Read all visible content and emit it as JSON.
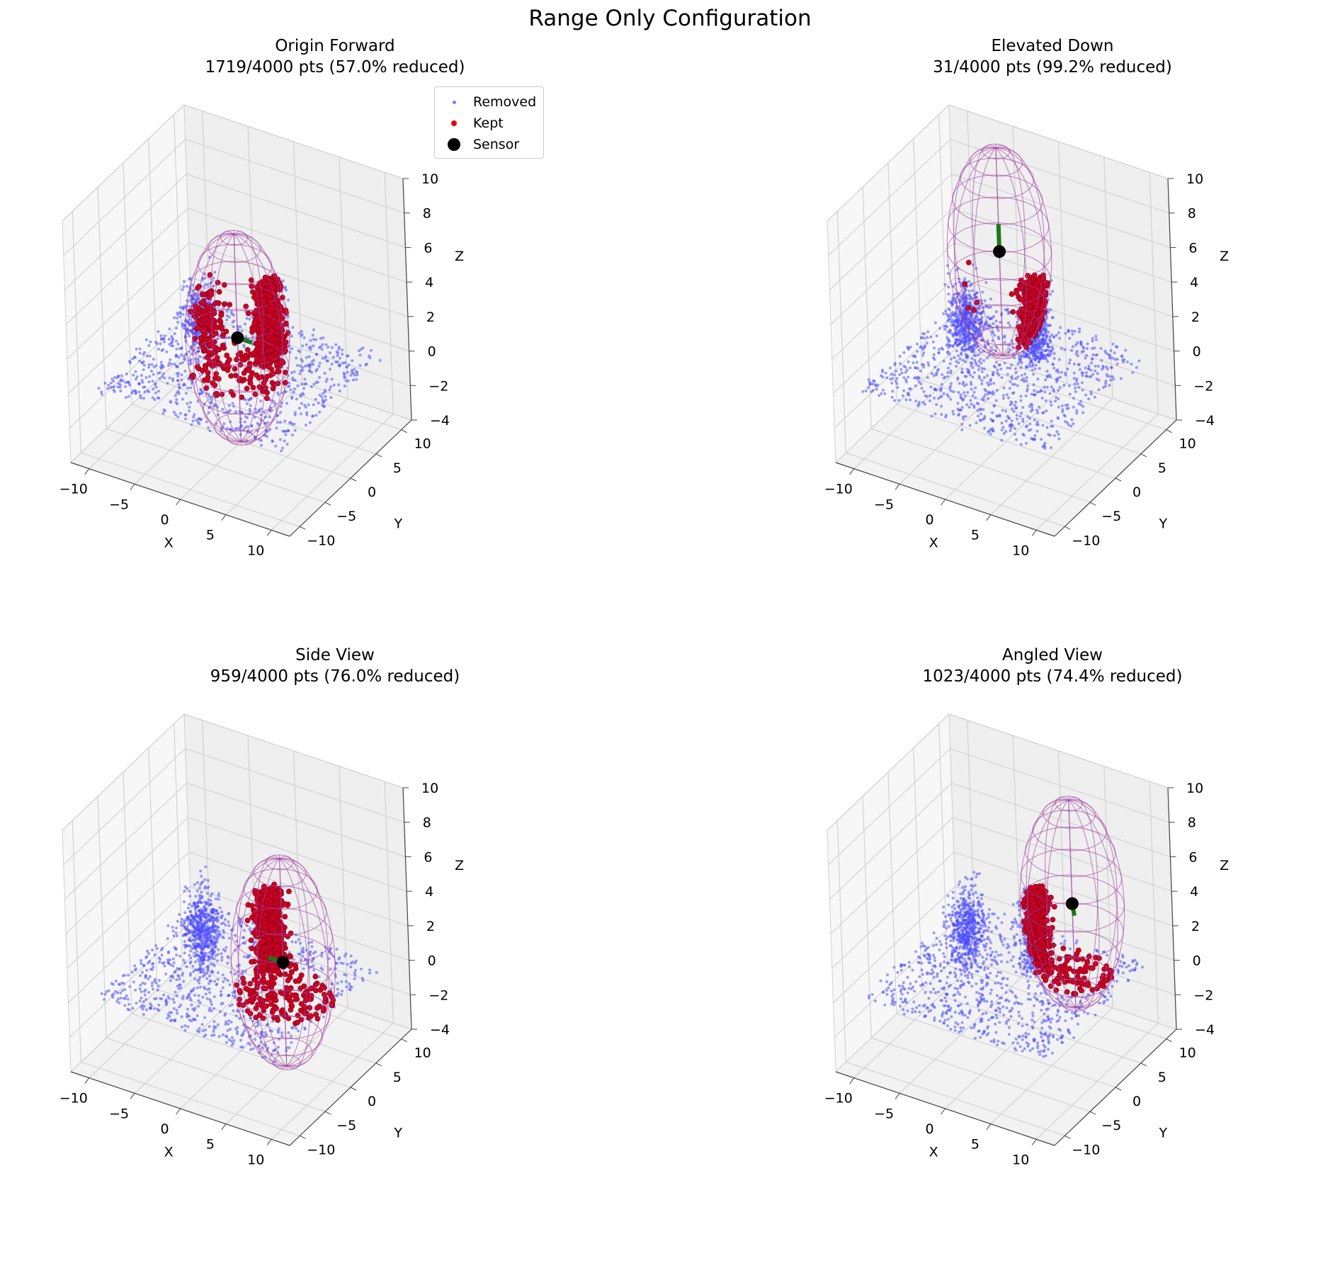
{
  "figure_title": "Range Only Configuration",
  "legend": {
    "entries": [
      {
        "label": "Removed",
        "color": "#4d4dff"
      },
      {
        "label": "Kept",
        "color": "#ee0000"
      },
      {
        "label": "Sensor",
        "color": "#000000"
      }
    ]
  },
  "axes_common": {
    "xlabel": "X",
    "ylabel": "Y",
    "zlabel": "Z",
    "xticks": [
      "−10",
      "−5",
      "0",
      "5",
      "10"
    ],
    "yticks": [
      "−10",
      "−5",
      "0",
      "5",
      "10"
    ],
    "zticks": [
      "−4",
      "−2",
      "0",
      "2",
      "4",
      "6",
      "8",
      "10"
    ],
    "xlim": [
      -12,
      12
    ],
    "ylim": [
      -12,
      12
    ],
    "zlim": [
      -4,
      10
    ]
  },
  "panels": [
    {
      "title": "Origin Forward",
      "subtitle": "1719/4000 pts (57.0% reduced)"
    },
    {
      "title": "Elevated Down",
      "subtitle": "31/4000 pts (99.2% reduced)"
    },
    {
      "title": "Side View",
      "subtitle": "959/4000 pts (76.0% reduced)"
    },
    {
      "title": "Angled View",
      "subtitle": "1023/4000 pts (74.4% reduced)"
    }
  ],
  "chart_data": [
    {
      "type": "scatter",
      "title": "Origin Forward",
      "subtitle": "1719/4000 pts (57.0% reduced)",
      "total_points": 4000,
      "kept_points": 1719,
      "reduction_pct": 57.0,
      "sensor": {
        "x": 0,
        "y": 0,
        "z": 0
      },
      "direction": [
        1,
        0,
        0
      ],
      "range_ellipsoid": {
        "center": [
          0,
          0,
          0
        ],
        "radii": [
          5,
          5,
          6
        ]
      }
    },
    {
      "type": "scatter",
      "title": "Elevated Down",
      "subtitle": "31/4000 pts (99.2% reduced)",
      "total_points": 4000,
      "kept_points": 31,
      "reduction_pct": 99.2,
      "sensor": {
        "x": 0,
        "y": 0,
        "z": 5
      },
      "direction": [
        0,
        0,
        1
      ],
      "range_ellipsoid": {
        "center": [
          0,
          0,
          5
        ],
        "radii": [
          5,
          5,
          6
        ]
      }
    },
    {
      "type": "scatter",
      "title": "Side View",
      "subtitle": "959/4000 pts (76.0% reduced)",
      "total_points": 4000,
      "kept_points": 959,
      "reduction_pct": 76.0,
      "sensor": {
        "x": 5,
        "y": 0,
        "z": 0
      },
      "direction": [
        -1,
        0,
        0
      ],
      "range_ellipsoid": {
        "center": [
          5,
          0,
          0
        ],
        "radii": [
          5,
          5,
          6
        ]
      }
    },
    {
      "type": "scatter",
      "title": "Angled View",
      "subtitle": "1023/4000 pts (74.4% reduced)",
      "total_points": 4000,
      "kept_points": 1023,
      "reduction_pct": 74.4,
      "sensor": {
        "x": 5,
        "y": 5,
        "z": 2
      },
      "direction": [
        0.3,
        -0.3,
        -0.3
      ],
      "range_ellipsoid": {
        "center": [
          5,
          5,
          2
        ],
        "radii": [
          5,
          5,
          6
        ]
      }
    }
  ]
}
